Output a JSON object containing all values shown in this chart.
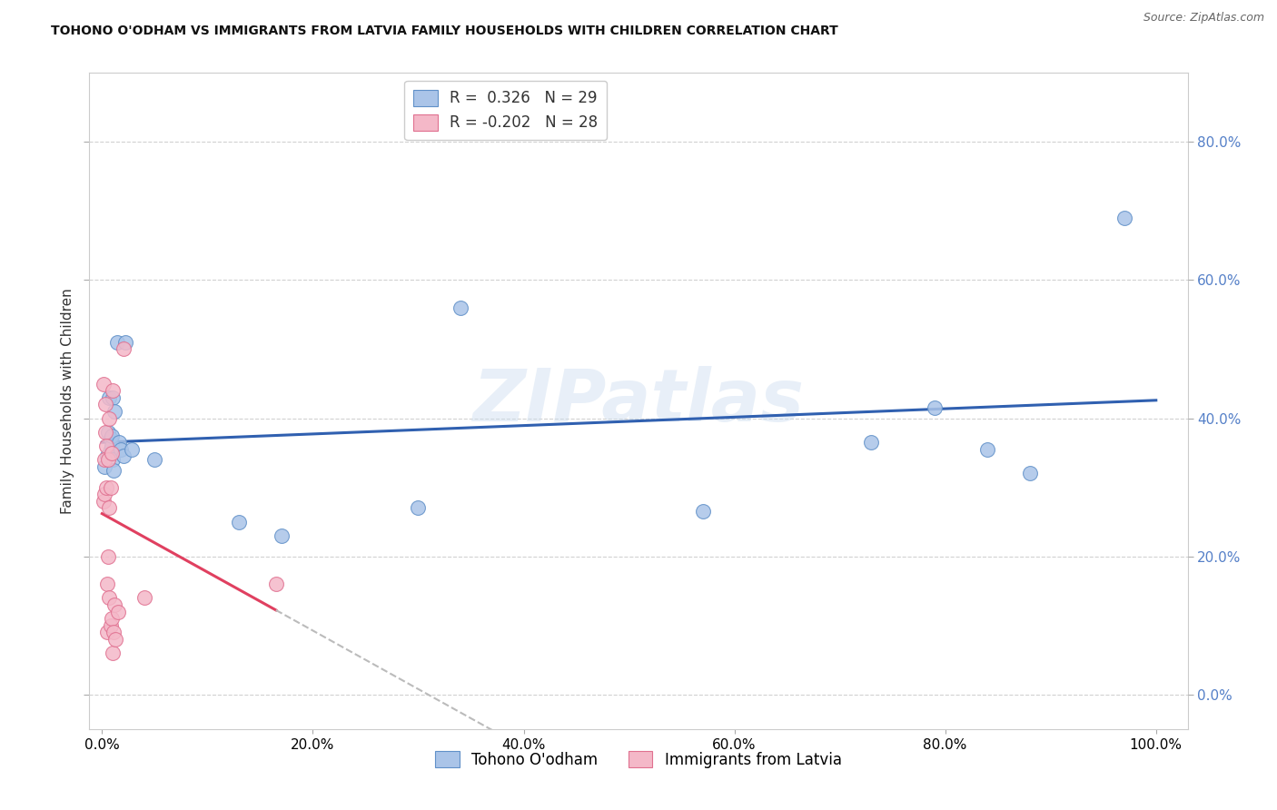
{
  "title": "TOHONO O'ODHAM VS IMMIGRANTS FROM LATVIA FAMILY HOUSEHOLDS WITH CHILDREN CORRELATION CHART",
  "source": "Source: ZipAtlas.com",
  "ylabel": "Family Households with Children",
  "blue_color": "#aac4e8",
  "pink_color": "#f4b8c8",
  "blue_edge_color": "#6090c8",
  "pink_edge_color": "#e07090",
  "blue_line_color": "#3060b0",
  "pink_line_color": "#e04060",
  "pink_dash_color": "#bbbbbb",
  "watermark_text": "ZIPatlas",
  "watermark_color": "#ccddf0",
  "legend_r_blue": "0.326",
  "legend_n_blue": "29",
  "legend_r_pink": "-0.202",
  "legend_n_pink": "28",
  "right_tick_color": "#5580c8",
  "blue_x": [
    0.002,
    0.005,
    0.006,
    0.007,
    0.008,
    0.008,
    0.009,
    0.009,
    0.01,
    0.01,
    0.011,
    0.012,
    0.014,
    0.016,
    0.018,
    0.02,
    0.022,
    0.028,
    0.05,
    0.13,
    0.17,
    0.3,
    0.34,
    0.57,
    0.73,
    0.79,
    0.84,
    0.88,
    0.97
  ],
  "blue_y": [
    0.33,
    0.345,
    0.38,
    0.43,
    0.355,
    0.37,
    0.36,
    0.375,
    0.34,
    0.43,
    0.325,
    0.41,
    0.51,
    0.365,
    0.355,
    0.345,
    0.51,
    0.355,
    0.34,
    0.25,
    0.23,
    0.27,
    0.56,
    0.265,
    0.365,
    0.415,
    0.355,
    0.32,
    0.69
  ],
  "pink_x": [
    0.001,
    0.001,
    0.002,
    0.002,
    0.003,
    0.003,
    0.004,
    0.004,
    0.005,
    0.005,
    0.006,
    0.006,
    0.007,
    0.007,
    0.007,
    0.008,
    0.008,
    0.009,
    0.009,
    0.01,
    0.01,
    0.011,
    0.012,
    0.013,
    0.015,
    0.02,
    0.04,
    0.165
  ],
  "pink_y": [
    0.28,
    0.45,
    0.29,
    0.34,
    0.38,
    0.42,
    0.3,
    0.36,
    0.09,
    0.16,
    0.2,
    0.34,
    0.14,
    0.27,
    0.4,
    0.1,
    0.3,
    0.11,
    0.35,
    0.06,
    0.44,
    0.09,
    0.13,
    0.08,
    0.12,
    0.5,
    0.14,
    0.16
  ],
  "background_color": "#ffffff",
  "grid_color": "#cccccc",
  "xlim": [
    -0.012,
    1.03
  ],
  "ylim": [
    -0.05,
    0.9
  ],
  "xticks": [
    0.0,
    0.2,
    0.4,
    0.6,
    0.8,
    1.0
  ],
  "yticks": [
    0.0,
    0.2,
    0.4,
    0.6,
    0.8
  ]
}
